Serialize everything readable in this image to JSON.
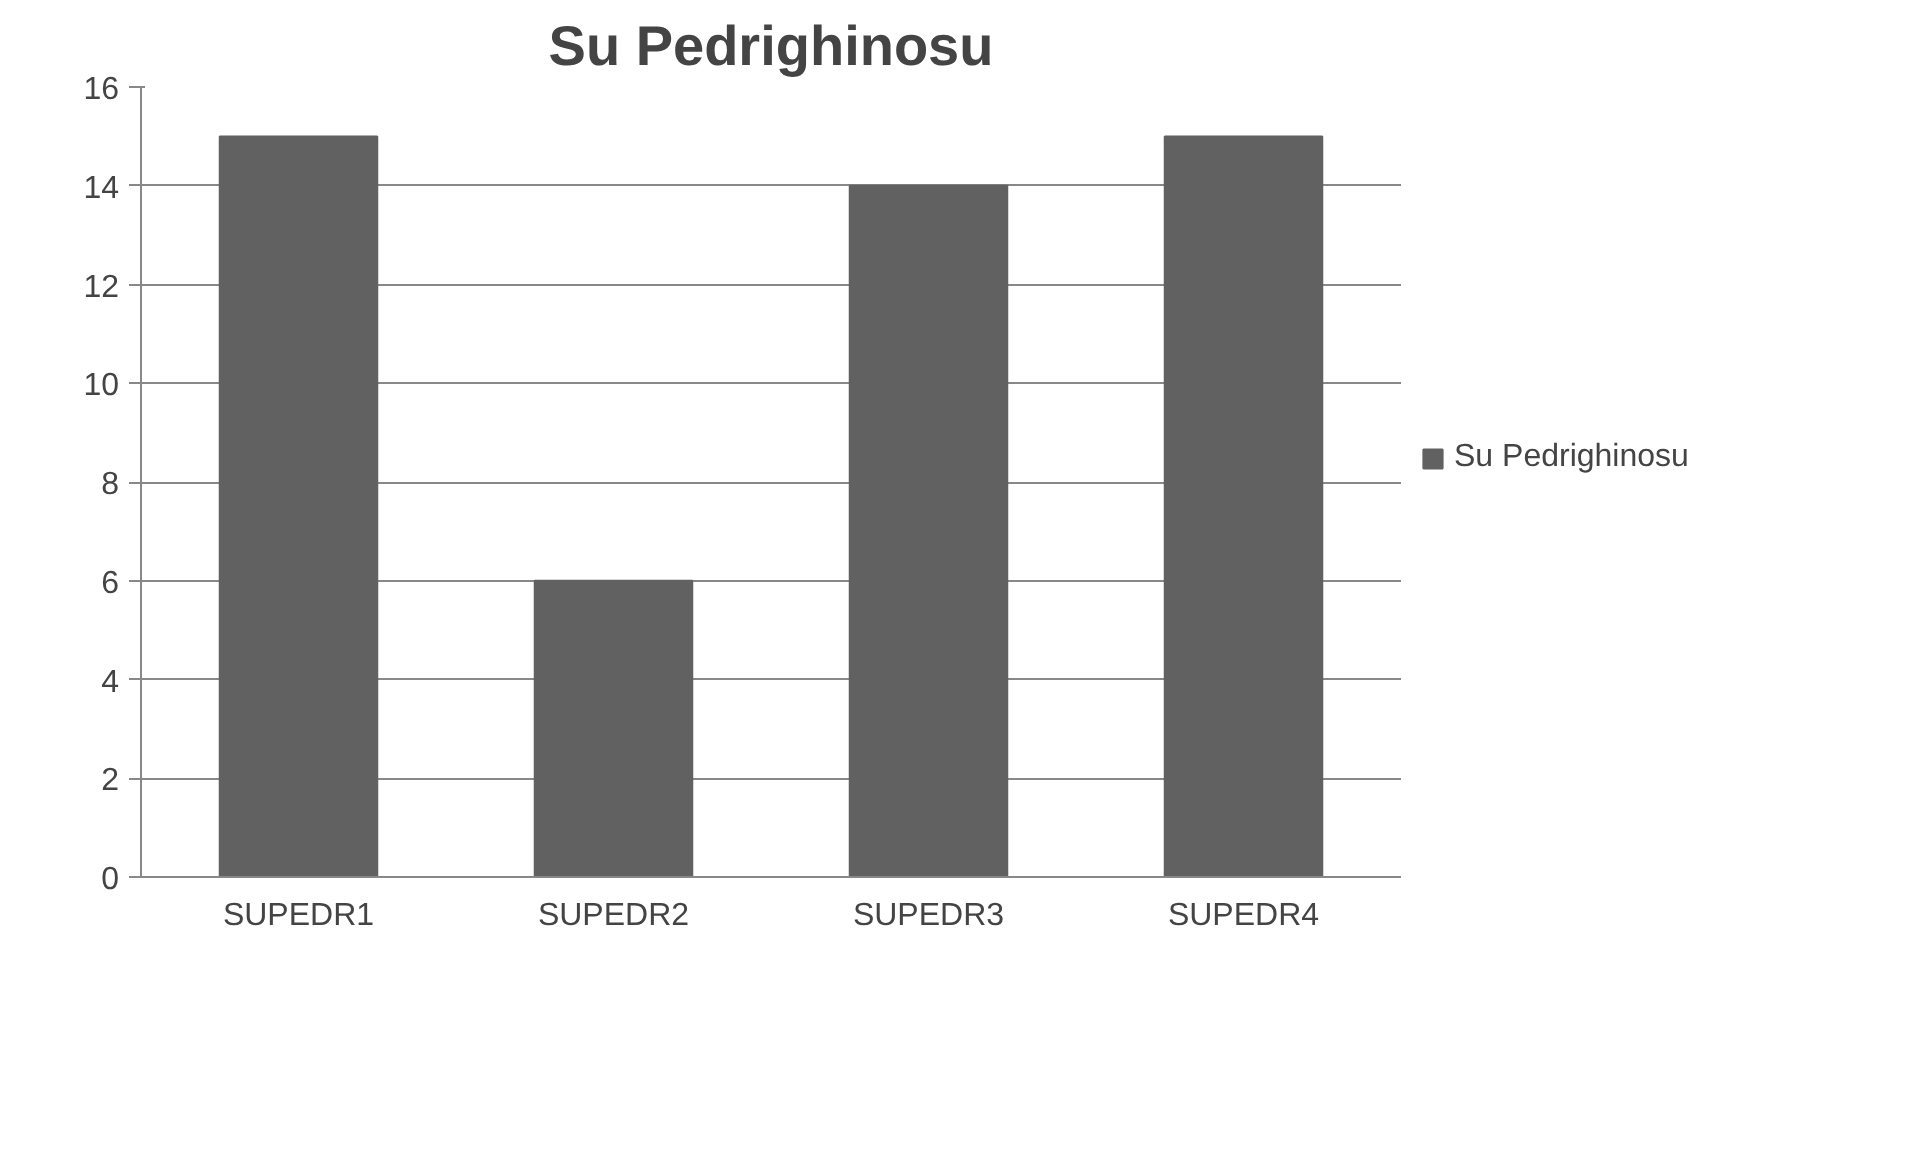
{
  "chart_data": {
    "type": "bar",
    "title": "Su Pedrighinosu",
    "categories": [
      "SUPEDR1",
      "SUPEDR2",
      "SUPEDR3",
      "SUPEDR4"
    ],
    "series": [
      {
        "name": "Su Pedrighinosu",
        "color": "#616161",
        "values": [
          15,
          6,
          14,
          15
        ]
      }
    ],
    "ylim": [
      0,
      16
    ],
    "yticks": [
      0,
      2,
      4,
      6,
      8,
      10,
      12,
      14,
      16
    ],
    "grid": "y",
    "legend": "right"
  }
}
